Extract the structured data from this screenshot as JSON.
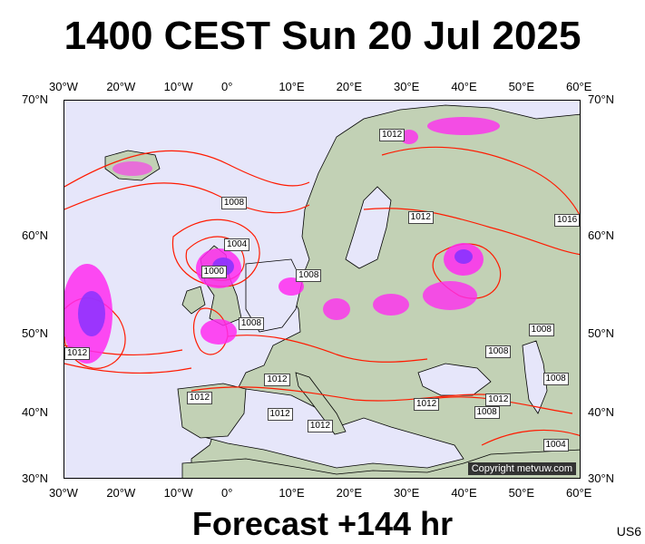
{
  "header": {
    "title": "1400 CEST Sun 20 Jul 2025"
  },
  "footer": {
    "forecast": "Forecast +144 hr",
    "model_code": "US6"
  },
  "map": {
    "lon_labels": [
      "30°W",
      "20°W",
      "10°W",
      "0°",
      "10°E",
      "20°E",
      "30°E",
      "40°E",
      "50°E",
      "60°E"
    ],
    "lat_labels": [
      "70°N",
      "60°N",
      "50°N",
      "40°N",
      "30°N"
    ],
    "copyright": "Copyright metvuw.com",
    "isobars": [
      {
        "value": "1012",
        "lon": 27,
        "lat": 67.5
      },
      {
        "value": "1008",
        "lon": -0.5,
        "lat": 62.5
      },
      {
        "value": "1004",
        "lon": 0,
        "lat": 59.2
      },
      {
        "value": "1000",
        "lon": -4,
        "lat": 56.4
      },
      {
        "value": "1008",
        "lon": 12.5,
        "lat": 56.0
      },
      {
        "value": "1012",
        "lon": 32,
        "lat": 61.4
      },
      {
        "value": "1016",
        "lon": 59.5,
        "lat": 61.2
      },
      {
        "value": "1008",
        "lon": 2.5,
        "lat": 51.1
      },
      {
        "value": "1012",
        "lon": -28.5,
        "lat": 47.6
      },
      {
        "value": "1012",
        "lon": 7,
        "lat": 44.3
      },
      {
        "value": "1012",
        "lon": -6.5,
        "lat": 41.9
      },
      {
        "value": "1012",
        "lon": 7.5,
        "lat": 39.8
      },
      {
        "value": "1012",
        "lon": 14.5,
        "lat": 38.1
      },
      {
        "value": "1012",
        "lon": 33,
        "lat": 41.2
      },
      {
        "value": "1012",
        "lon": 45.5,
        "lat": 41.7
      },
      {
        "value": "1008",
        "lon": 43.5,
        "lat": 40.1
      },
      {
        "value": "1008",
        "lon": 45.5,
        "lat": 47.8
      },
      {
        "value": "1008",
        "lon": 53,
        "lat": 50.5
      },
      {
        "value": "1008",
        "lon": 55.5,
        "lat": 44.4
      },
      {
        "value": "1004",
        "lon": 55.5,
        "lat": 35.2
      }
    ],
    "colors": {
      "sea": "#e6e6fa",
      "land": "#c2d1b5",
      "isobar": "#ff1a00",
      "rain": "#ff2cf0",
      "rain_heavy": "#8a33ff"
    }
  }
}
